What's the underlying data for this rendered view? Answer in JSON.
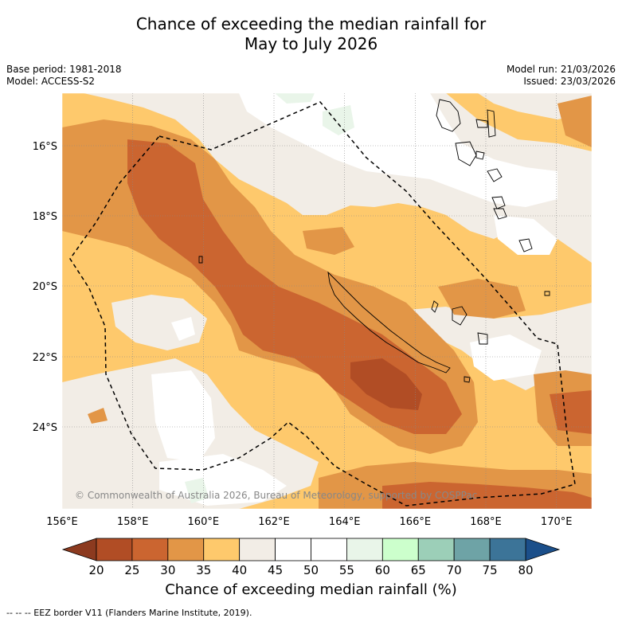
{
  "title": {
    "line1": "Chance of exceeding the median rainfall for",
    "line2": "May to July 2026"
  },
  "meta": {
    "base_period": "Base period: 1981-2018",
    "model": "Model: ACCESS-S2",
    "model_run": "Model run: 21/03/2026",
    "issued": "Issued: 23/03/2026"
  },
  "map": {
    "lat_labels": [
      "16°S",
      "18°S",
      "20°S",
      "22°S",
      "24°S"
    ],
    "lon_labels": [
      "156°E",
      "158°E",
      "160°E",
      "162°E",
      "164°E",
      "166°E",
      "168°E",
      "170°E"
    ],
    "lat_values": [
      -16,
      -18,
      -20,
      -22,
      -24
    ],
    "lon_values": [
      156,
      158,
      160,
      162,
      164,
      166,
      168,
      170
    ],
    "copyright": "© Commonwealth of Australia 2026, Bureau of Meteorology, supported by COSPPac",
    "colors": {
      "20_25": "#b14d25",
      "25_30": "#cb6530",
      "30_35": "#e29647",
      "35_40": "#fec96c",
      "40_45": "#f2ede6",
      "45_55": "#ffffff",
      "55_60": "#e9f5e9"
    }
  },
  "colorbar": {
    "ticks": [
      "20",
      "25",
      "30",
      "35",
      "40",
      "45",
      "50",
      "55",
      "60",
      "65",
      "70",
      "75",
      "80"
    ],
    "colors": [
      "#b14d25",
      "#cb6530",
      "#e29647",
      "#fec96c",
      "#f2ede6",
      "#ffffff",
      "#ffffff",
      "#e9f5e9",
      "#ccffcc",
      "#9ccfb8",
      "#6ea3a6",
      "#3c7498"
    ],
    "low_extend": "#8c3a1f",
    "high_extend": "#1b4f8a",
    "title": "Chance of exceeding median rainfall (%)"
  },
  "footnote": "--  --  -- EEZ border V11 (Flanders Marine Institute, 2019)."
}
